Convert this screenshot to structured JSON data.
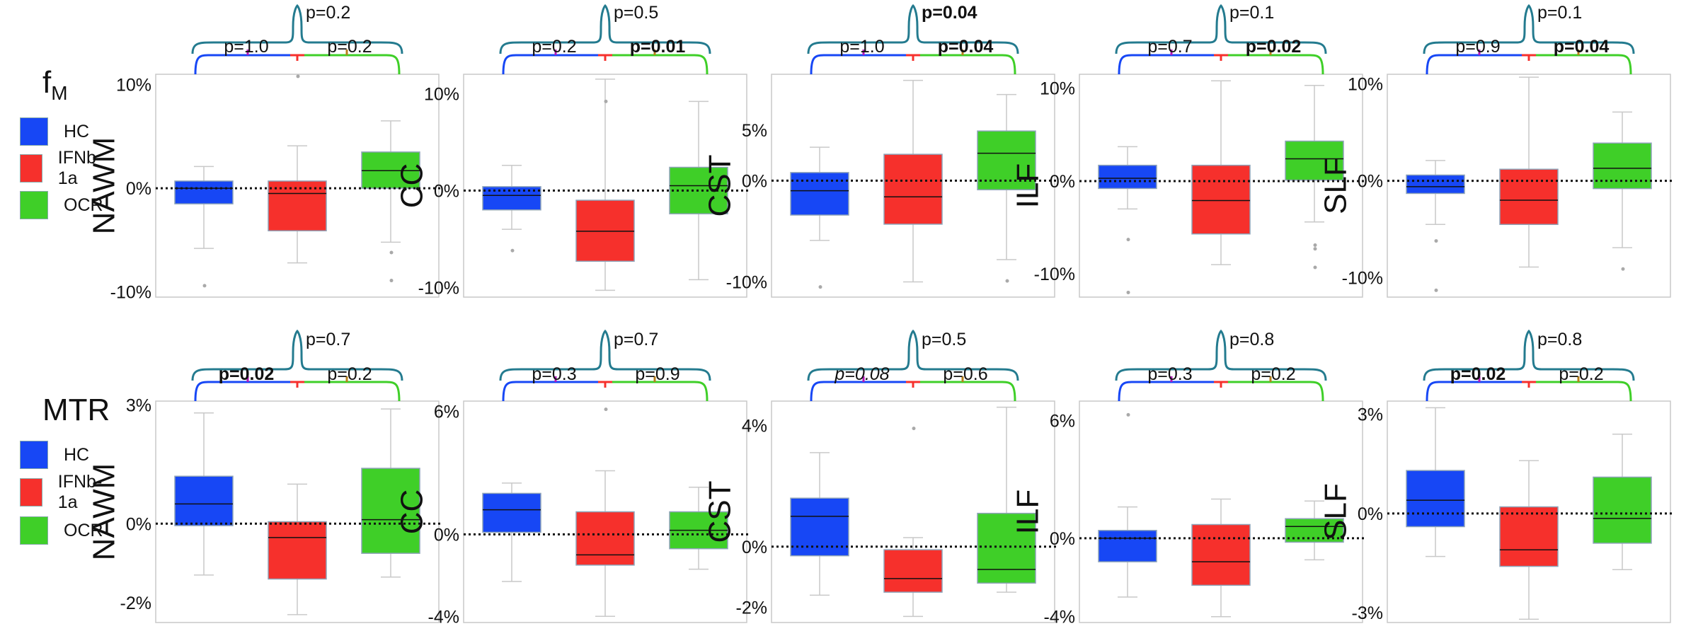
{
  "colors": {
    "HC": "#1747f5",
    "IFNb-1a": "#f6302c",
    "OCR": "#3fcf28",
    "bracket_HC_IFN": "#b418b8",
    "bracket_IFN_OCR": "#b8801d",
    "bracket_outer": "#247b8f",
    "bracket_left": "#1747f5",
    "bracket_mid": "#f6302c",
    "bracket_right": "#3fcf28"
  },
  "legends": [
    {
      "title": "f",
      "title_sub": "M",
      "items": [
        {
          "label": "HC",
          "color": "#1747f5"
        },
        {
          "label": "IFNb-1a",
          "color": "#f6302c"
        },
        {
          "label": "OCR",
          "color": "#3fcf28"
        }
      ]
    },
    {
      "title": "MTR",
      "title_sub": "",
      "items": [
        {
          "label": "HC",
          "color": "#1747f5"
        },
        {
          "label": "IFNb-1a",
          "color": "#f6302c"
        },
        {
          "label": "OCR",
          "color": "#3fcf28"
        }
      ]
    }
  ],
  "chart_data": [
    {
      "type": "box",
      "row": "fM",
      "region": "NAWM",
      "ylim": [
        -10.5,
        11
      ],
      "ticks": [
        {
          "value": 10,
          "label": "10%"
        },
        {
          "value": 0,
          "label": "0%"
        },
        {
          "value": -10,
          "label": "-10%"
        }
      ],
      "groups": [
        "HC",
        "IFNb-1a",
        "OCR"
      ],
      "boxes": [
        {
          "group": "HC",
          "q1": -1.5,
          "median": 0,
          "q3": 0.7,
          "whisk_lo": -5.8,
          "whisk_hi": 2.1,
          "outliers": [
            -9.4
          ]
        },
        {
          "group": "IFNb-1a",
          "q1": -4.1,
          "median": -0.5,
          "q3": 0.7,
          "whisk_lo": -7.2,
          "whisk_hi": 4.1,
          "outliers": [
            10.8
          ]
        },
        {
          "group": "OCR",
          "q1": 0,
          "median": 1.7,
          "q3": 3.5,
          "whisk_lo": -5.2,
          "whisk_hi": 6.5,
          "outliers": [
            -6.2,
            -8.9
          ]
        }
      ],
      "p_values": {
        "HC_vs_IFNb": {
          "text": "p=1.0",
          "bold": false,
          "italic": false
        },
        "IFNb_vs_OCR": {
          "text": "p=0.2",
          "bold": false,
          "italic": false
        },
        "HC_vs_OCR": {
          "text": "p=0.2",
          "bold": false,
          "italic": false
        }
      }
    },
    {
      "type": "box",
      "row": "fM",
      "region": "CC",
      "ylim": [
        -11,
        12
      ],
      "ticks": [
        {
          "value": 10,
          "label": "10%"
        },
        {
          "value": 0,
          "label": "0%"
        },
        {
          "value": -10,
          "label": "-10%"
        }
      ],
      "groups": [
        "HC",
        "IFNb-1a",
        "OCR"
      ],
      "boxes": [
        {
          "group": "HC",
          "q1": -2,
          "median": -0.5,
          "q3": 0.4,
          "whisk_lo": -4,
          "whisk_hi": 2.6,
          "outliers": [
            -6.2
          ]
        },
        {
          "group": "IFNb-1a",
          "q1": -7.3,
          "median": -4.2,
          "q3": -1,
          "whisk_lo": -10.3,
          "whisk_hi": 11.5,
          "outliers": [
            9.2
          ]
        },
        {
          "group": "OCR",
          "q1": -2.4,
          "median": 0.5,
          "q3": 2.4,
          "whisk_lo": -9.2,
          "whisk_hi": 9.2,
          "outliers": []
        }
      ],
      "p_values": {
        "HC_vs_IFNb": {
          "text": "p=0.2",
          "bold": false,
          "italic": false
        },
        "IFNb_vs_OCR": {
          "text": "p=0.01",
          "bold": true,
          "italic": false
        },
        "HC_vs_OCR": {
          "text": "p=0.5",
          "bold": false,
          "italic": false
        }
      }
    },
    {
      "type": "box",
      "row": "fM",
      "region": "CST",
      "ylim": [
        -11.5,
        10.5
      ],
      "ticks": [
        {
          "value": 5,
          "label": "5%"
        },
        {
          "value": 0,
          "label": "0%"
        },
        {
          "value": -10,
          "label": "-10%"
        }
      ],
      "groups": [
        "HC",
        "IFNb-1a",
        "OCR"
      ],
      "boxes": [
        {
          "group": "HC",
          "q1": -3.4,
          "median": -1,
          "q3": 0.8,
          "whisk_lo": -5.9,
          "whisk_hi": 3.3,
          "outliers": [
            -10.5
          ]
        },
        {
          "group": "IFNb-1a",
          "q1": -4.3,
          "median": -1.6,
          "q3": 2.6,
          "whisk_lo": -10,
          "whisk_hi": 9.9,
          "outliers": []
        },
        {
          "group": "OCR",
          "q1": -0.9,
          "median": 2.7,
          "q3": 4.9,
          "whisk_lo": -7.8,
          "whisk_hi": 8.5,
          "outliers": [
            -9.9
          ]
        }
      ],
      "p_values": {
        "HC_vs_IFNb": {
          "text": "p=1.0",
          "bold": false,
          "italic": false
        },
        "IFNb_vs_OCR": {
          "text": "p=0.04",
          "bold": true,
          "italic": false
        },
        "HC_vs_OCR": {
          "text": "p=0.04",
          "bold": true,
          "italic": false
        }
      }
    },
    {
      "type": "box",
      "row": "fM",
      "region": "ILF",
      "ylim": [
        -12.5,
        11.5
      ],
      "ticks": [
        {
          "value": 10,
          "label": "10%"
        },
        {
          "value": 0,
          "label": "0%"
        },
        {
          "value": -10,
          "label": "-10%"
        }
      ],
      "groups": [
        "HC",
        "IFNb-1a",
        "OCR"
      ],
      "boxes": [
        {
          "group": "HC",
          "q1": -0.8,
          "median": 0.3,
          "q3": 1.7,
          "whisk_lo": -3,
          "whisk_hi": 3.7,
          "outliers": [
            -6.3,
            -12
          ]
        },
        {
          "group": "IFNb-1a",
          "q1": -5.7,
          "median": -2.1,
          "q3": 1.7,
          "whisk_lo": -9,
          "whisk_hi": 10.8,
          "outliers": []
        },
        {
          "group": "OCR",
          "q1": 0.1,
          "median": 2.4,
          "q3": 4.3,
          "whisk_lo": -4.4,
          "whisk_hi": 10.3,
          "outliers": [
            -6.9,
            -7.3,
            -9.3
          ]
        }
      ],
      "p_values": {
        "HC_vs_IFNb": {
          "text": "p=0.7",
          "bold": false,
          "italic": false
        },
        "IFNb_vs_OCR": {
          "text": "p=0.02",
          "bold": true,
          "italic": false
        },
        "HC_vs_OCR": {
          "text": "p=0.1",
          "bold": false,
          "italic": false
        }
      }
    },
    {
      "type": "box",
      "row": "fM",
      "region": "SLF",
      "ylim": [
        -12,
        11
      ],
      "ticks": [
        {
          "value": 10,
          "label": "10%"
        },
        {
          "value": 0,
          "label": "0%"
        },
        {
          "value": -10,
          "label": "-10%"
        }
      ],
      "groups": [
        "HC",
        "IFNb-1a",
        "OCR"
      ],
      "boxes": [
        {
          "group": "HC",
          "q1": -1.3,
          "median": -0.6,
          "q3": 0.6,
          "whisk_lo": -4.5,
          "whisk_hi": 2.1,
          "outliers": [
            -6.2,
            -11.3
          ]
        },
        {
          "group": "IFNb-1a",
          "q1": -4.5,
          "median": -2,
          "q3": 1.2,
          "whisk_lo": -8.9,
          "whisk_hi": 10.7,
          "outliers": []
        },
        {
          "group": "OCR",
          "q1": -0.8,
          "median": 1.3,
          "q3": 3.9,
          "whisk_lo": -6.9,
          "whisk_hi": 7.1,
          "outliers": [
            -9.1
          ]
        }
      ],
      "p_values": {
        "HC_vs_IFNb": {
          "text": "p=0.9",
          "bold": false,
          "italic": false
        },
        "IFNb_vs_OCR": {
          "text": "p=0.04",
          "bold": true,
          "italic": false
        },
        "HC_vs_OCR": {
          "text": "p=0.1",
          "bold": false,
          "italic": false
        }
      }
    },
    {
      "type": "box",
      "row": "MTR",
      "region": "NAWM",
      "ylim": [
        -2.5,
        3.1
      ],
      "ticks": [
        {
          "value": 3,
          "label": "3%"
        },
        {
          "value": 0,
          "label": "0%"
        },
        {
          "value": -2,
          "label": "-2%"
        }
      ],
      "groups": [
        "HC",
        "IFNb-1a",
        "OCR"
      ],
      "boxes": [
        {
          "group": "HC",
          "q1": -0.05,
          "median": 0.5,
          "q3": 1.2,
          "whisk_lo": -1.3,
          "whisk_hi": 2.8,
          "outliers": []
        },
        {
          "group": "IFNb-1a",
          "q1": -1.4,
          "median": -0.35,
          "q3": 0.05,
          "whisk_lo": -2.3,
          "whisk_hi": 1,
          "outliers": []
        },
        {
          "group": "OCR",
          "q1": -0.75,
          "median": 0.1,
          "q3": 1.4,
          "whisk_lo": -1.35,
          "whisk_hi": 2.9,
          "outliers": []
        }
      ],
      "p_values": {
        "HC_vs_IFNb": {
          "text": "p=0.02",
          "bold": true,
          "italic": false
        },
        "IFNb_vs_OCR": {
          "text": "p=0.2",
          "bold": false,
          "italic": false
        },
        "HC_vs_OCR": {
          "text": "p=0.7",
          "bold": false,
          "italic": false
        }
      }
    },
    {
      "type": "box",
      "row": "MTR",
      "region": "CC",
      "ylim": [
        -4.3,
        6.5
      ],
      "ticks": [
        {
          "value": 6,
          "label": "6%"
        },
        {
          "value": 0,
          "label": "0%"
        },
        {
          "value": -4,
          "label": "-4%"
        }
      ],
      "groups": [
        "HC",
        "IFNb-1a",
        "OCR"
      ],
      "boxes": [
        {
          "group": "HC",
          "q1": 0.1,
          "median": 1.2,
          "q3": 2,
          "whisk_lo": -2.3,
          "whisk_hi": 2.5,
          "outliers": []
        },
        {
          "group": "IFNb-1a",
          "q1": -1.5,
          "median": -1,
          "q3": 1.1,
          "whisk_lo": -4,
          "whisk_hi": 3.1,
          "outliers": [
            6.1
          ]
        },
        {
          "group": "OCR",
          "q1": -0.7,
          "median": 0.2,
          "q3": 1.1,
          "whisk_lo": -1.7,
          "whisk_hi": 2.3,
          "outliers": []
        }
      ],
      "p_values": {
        "HC_vs_IFNb": {
          "text": "p=0.3",
          "bold": false,
          "italic": false
        },
        "IFNb_vs_OCR": {
          "text": "p=0.9",
          "bold": false,
          "italic": false
        },
        "HC_vs_OCR": {
          "text": "p=0.7",
          "bold": false,
          "italic": false
        }
      }
    },
    {
      "type": "box",
      "row": "MTR",
      "region": "CST",
      "ylim": [
        -2.5,
        4.8
      ],
      "ticks": [
        {
          "value": 4,
          "label": "4%"
        },
        {
          "value": 0,
          "label": "0%"
        },
        {
          "value": -2,
          "label": "-2%"
        }
      ],
      "groups": [
        "HC",
        "IFNb-1a",
        "OCR"
      ],
      "boxes": [
        {
          "group": "HC",
          "q1": -0.3,
          "median": 1,
          "q3": 1.6,
          "whisk_lo": -1.6,
          "whisk_hi": 3.1,
          "outliers": []
        },
        {
          "group": "IFNb-1a",
          "q1": -1.5,
          "median": -1.05,
          "q3": -0.1,
          "whisk_lo": -2.3,
          "whisk_hi": 0.3,
          "outliers": [
            3.9
          ]
        },
        {
          "group": "OCR",
          "q1": -1.2,
          "median": -0.75,
          "q3": 1.1,
          "whisk_lo": -1.5,
          "whisk_hi": 4.6,
          "outliers": []
        }
      ],
      "p_values": {
        "HC_vs_IFNb": {
          "text": "p=0.08",
          "bold": false,
          "italic": true
        },
        "IFNb_vs_OCR": {
          "text": "p=0.6",
          "bold": false,
          "italic": false
        },
        "HC_vs_OCR": {
          "text": "p=0.5",
          "bold": false,
          "italic": false
        }
      }
    },
    {
      "type": "box",
      "row": "MTR",
      "region": "ILF",
      "ylim": [
        -4.3,
        7
      ],
      "ticks": [
        {
          "value": 6,
          "label": "6%"
        },
        {
          "value": 0,
          "label": "0%"
        },
        {
          "value": -4,
          "label": "-4%"
        }
      ],
      "groups": [
        "HC",
        "IFNb-1a",
        "OCR"
      ],
      "boxes": [
        {
          "group": "HC",
          "q1": -1.2,
          "median": 0,
          "q3": 0.4,
          "whisk_lo": -3,
          "whisk_hi": 1.6,
          "outliers": [
            6.3
          ]
        },
        {
          "group": "IFNb-1a",
          "q1": -2.4,
          "median": -1.2,
          "q3": 0.7,
          "whisk_lo": -4,
          "whisk_hi": 2,
          "outliers": []
        },
        {
          "group": "OCR",
          "q1": -0.2,
          "median": 0.6,
          "q3": 1,
          "whisk_lo": -1.1,
          "whisk_hi": 1.9,
          "outliers": []
        }
      ],
      "p_values": {
        "HC_vs_IFNb": {
          "text": "p=0.3",
          "bold": false,
          "italic": false
        },
        "IFNb_vs_OCR": {
          "text": "p=0.2",
          "bold": false,
          "italic": false
        },
        "HC_vs_OCR": {
          "text": "p=0.8",
          "bold": false,
          "italic": false
        }
      }
    },
    {
      "type": "box",
      "row": "MTR",
      "region": "SLF",
      "ylim": [
        -3.3,
        3.4
      ],
      "ticks": [
        {
          "value": 3,
          "label": "3%"
        },
        {
          "value": 0,
          "label": "0%"
        },
        {
          "value": -3,
          "label": "-3%"
        }
      ],
      "groups": [
        "HC",
        "IFNb-1a",
        "OCR"
      ],
      "boxes": [
        {
          "group": "HC",
          "q1": -0.4,
          "median": 0.4,
          "q3": 1.3,
          "whisk_lo": -1.3,
          "whisk_hi": 3.2,
          "outliers": []
        },
        {
          "group": "IFNb-1a",
          "q1": -1.6,
          "median": -1.1,
          "q3": 0.2,
          "whisk_lo": -3.2,
          "whisk_hi": 1.6,
          "outliers": []
        },
        {
          "group": "OCR",
          "q1": -0.9,
          "median": -0.15,
          "q3": 1.1,
          "whisk_lo": -1.7,
          "whisk_hi": 2.4,
          "outliers": []
        }
      ],
      "p_values": {
        "HC_vs_IFNb": {
          "text": "p=0.02",
          "bold": true,
          "italic": false
        },
        "IFNb_vs_OCR": {
          "text": "p=0.2",
          "bold": false,
          "italic": false
        },
        "HC_vs_OCR": {
          "text": "p=0.8",
          "bold": false,
          "italic": false
        }
      }
    }
  ]
}
